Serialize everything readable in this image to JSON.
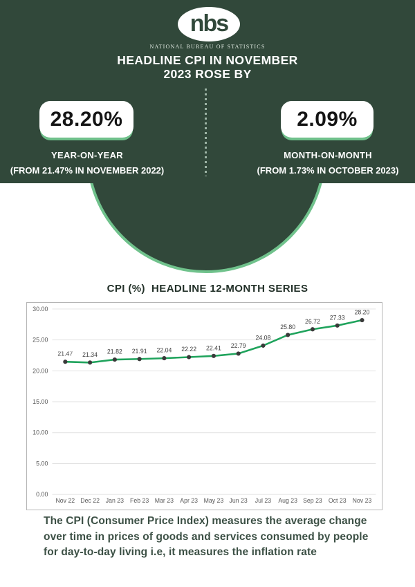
{
  "theme": {
    "background_green": "#31483A",
    "accent_green": "#70C28C",
    "line_green": "#1FA35C",
    "marker_color": "#3A3A3A",
    "text_white": "#FFFFFF",
    "footer_text": "#3C5045"
  },
  "brand": {
    "logo_text": "nbs",
    "org_name": "NATIONAL BUREAU OF STATISTICS"
  },
  "header": {
    "title_line1": "HEADLINE CPI IN NOVEMBER",
    "title_line2": "2023 ROSE BY"
  },
  "stats": {
    "yoy": {
      "value": "28.20%",
      "label": "YEAR-ON-YEAR",
      "sublabel": "(FROM 21.47% IN NOVEMBER 2022)"
    },
    "mom": {
      "value": "2.09%",
      "label": "MONTH-ON-MONTH",
      "sublabel": "(FROM 1.73% IN OCTOBER 2023)"
    }
  },
  "chart_data": {
    "type": "line",
    "title": "CPI (%)  HEADLINE 12-MONTH SERIES",
    "series_name": "Headline CPI (%)",
    "categories": [
      "Nov 22",
      "Dec 22",
      "Jan 23",
      "Feb 23",
      "Mar 23",
      "Apr 23",
      "May 23",
      "Jun 23",
      "Jul 23",
      "Aug 23",
      "Sep 23",
      "Oct 23",
      "Nov 23"
    ],
    "values": [
      21.47,
      21.34,
      21.82,
      21.91,
      22.04,
      22.22,
      22.41,
      22.79,
      24.08,
      25.8,
      26.72,
      27.33,
      28.2
    ],
    "ylim": [
      0,
      30
    ],
    "yticks": [
      "0.00",
      "5.00",
      "10.00",
      "15.00",
      "20.00",
      "25.00",
      "30.00"
    ],
    "grid": true,
    "legend": false,
    "data_labels": true
  },
  "footer": {
    "lines": [
      "The CPI (Consumer Price Index) measures the average change",
      "over time in prices of goods and services consumed by people",
      "for day-to-day living i.e, it measures the inflation rate"
    ]
  }
}
